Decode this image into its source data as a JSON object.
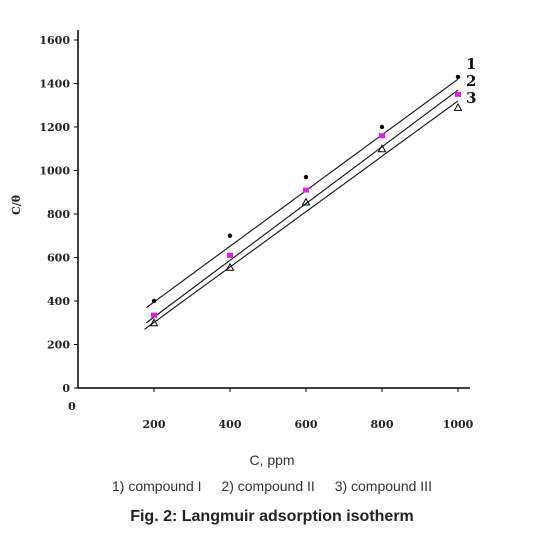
{
  "chart_data": {
    "type": "scatter",
    "ylabel": "C/θ",
    "xlabel": "C, ppm",
    "xlim": [
      0,
      1000
    ],
    "ylim": [
      0,
      1600
    ],
    "xticks": [
      200,
      400,
      600,
      800,
      1000
    ],
    "yticks": [
      0,
      200,
      400,
      600,
      800,
      1000,
      1200,
      1400,
      1600
    ],
    "origin_label": "0",
    "grid": false,
    "series": [
      {
        "name": "1",
        "color": "#000000",
        "marker": "dot",
        "x": [
          200,
          400,
          600,
          800,
          1000
        ],
        "y": [
          400,
          700,
          970,
          1200,
          1430
        ],
        "fit": [
          [
            180,
            370
          ],
          [
            1000,
            1420
          ]
        ]
      },
      {
        "name": "2",
        "color": "#e020e0",
        "marker": "square",
        "x": [
          200,
          400,
          600,
          800,
          1000
        ],
        "y": [
          335,
          610,
          910,
          1160,
          1350
        ],
        "fit": [
          [
            180,
            300
          ],
          [
            1000,
            1370
          ]
        ]
      },
      {
        "name": "3",
        "color": "#000000",
        "marker": "triangle",
        "x": [
          200,
          400,
          600,
          800,
          1000
        ],
        "y": [
          300,
          555,
          855,
          1100,
          1290
        ],
        "fit": [
          [
            175,
            270
          ],
          [
            1000,
            1320
          ]
        ]
      }
    ]
  },
  "legend": [
    "1) compound I",
    "2) compound II",
    "3) compound III"
  ],
  "caption": "Fig. 2: Langmuir adsorption isotherm"
}
